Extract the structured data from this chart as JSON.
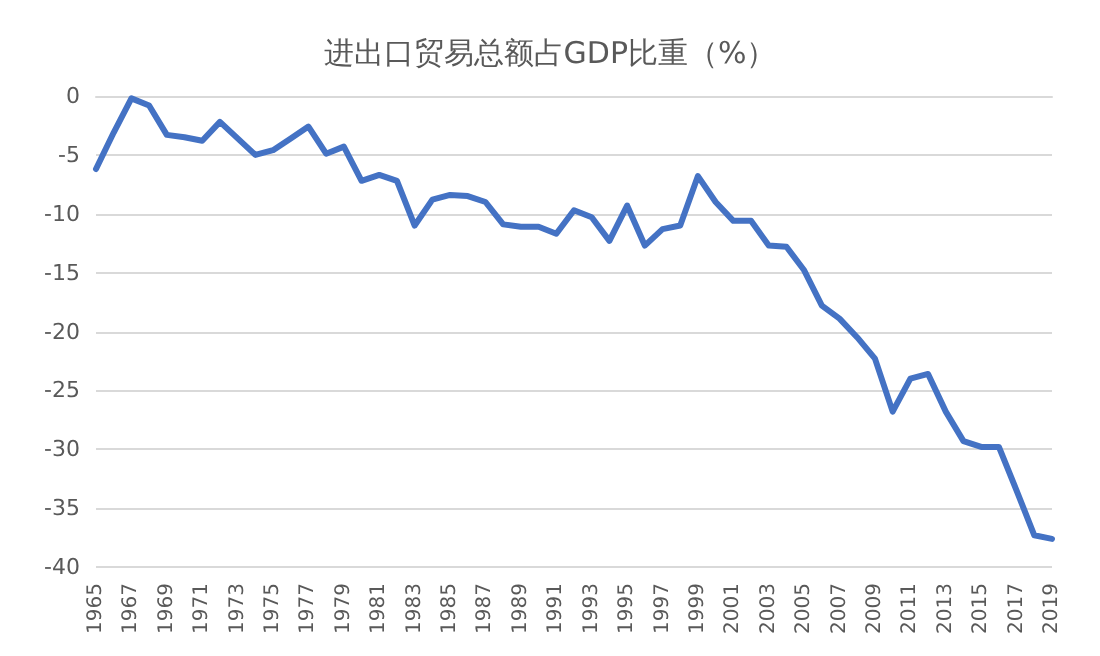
{
  "chart_data": {
    "type": "line",
    "title": "进出口贸易总额占GDP比重（%）",
    "categories": [
      "1965",
      null,
      "1967",
      null,
      "1969",
      null,
      "1971",
      null,
      "1973",
      null,
      "1975",
      null,
      "1977",
      null,
      "1979",
      null,
      "1981",
      null,
      "1983",
      null,
      "1985",
      null,
      "1987",
      null,
      "1989",
      null,
      "1991",
      null,
      "1993",
      null,
      "1995",
      null,
      "1997",
      null,
      "1999",
      null,
      "2001",
      null,
      "2003",
      null,
      "2005",
      null,
      "2007",
      null,
      "2009",
      null,
      "2011",
      null,
      "2013",
      null,
      "2015",
      null,
      "2017",
      null,
      "2019"
    ],
    "series": [
      {
        "color": "#4472c4",
        "values": [
          -6.2,
          -3.1,
          -0.2,
          -0.8,
          -3.3,
          -3.5,
          -3.8,
          -2.2,
          -3.6,
          -5.0,
          -4.6,
          -3.6,
          -2.6,
          -4.9,
          -4.3,
          -7.2,
          -6.7,
          -7.2,
          -11.0,
          -8.8,
          -8.4,
          -8.5,
          -9.0,
          -10.9,
          -11.1,
          -11.1,
          -11.7,
          -9.7,
          -10.3,
          -12.3,
          -9.3,
          -12.7,
          -11.3,
          -11.0,
          -6.8,
          -9.0,
          -10.6,
          -10.6,
          -12.7,
          -12.8,
          -14.8,
          -17.8,
          -18.9,
          -20.5,
          -22.3,
          -26.8,
          -24.0,
          -23.6,
          -26.8,
          -29.3,
          -29.8,
          -29.8,
          -33.5,
          -37.3,
          -37.6
        ]
      }
    ],
    "ylim": [
      -40,
      0
    ],
    "yticks": [
      -40,
      -35,
      -30,
      -25,
      -20,
      -15,
      -10,
      -5,
      0
    ],
    "grid": "y",
    "marker": "none",
    "line_style": "solid"
  }
}
